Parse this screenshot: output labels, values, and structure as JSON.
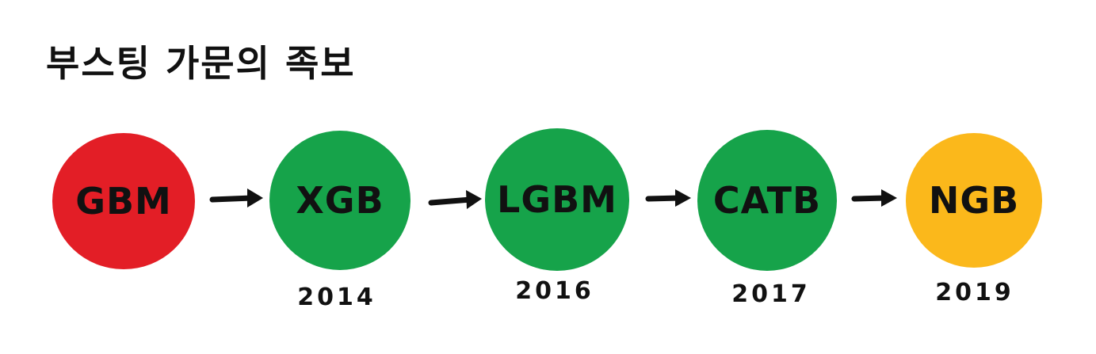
{
  "title": "부스팅 가문의 족보",
  "colors": {
    "red": "#e31e26",
    "green": "#16a34a",
    "yellow": "#fbb81b",
    "ink": "#111111"
  },
  "nodes": [
    {
      "label": "GBM",
      "color": "#e31e26",
      "year": ""
    },
    {
      "label": "XGB",
      "color": "#16a34a",
      "year": "2014"
    },
    {
      "label": "LGBM",
      "color": "#16a34a",
      "year": "2016"
    },
    {
      "label": "CATB",
      "color": "#16a34a",
      "year": "2017"
    },
    {
      "label": "NGB",
      "color": "#fbb81b",
      "year": "2019"
    }
  ]
}
